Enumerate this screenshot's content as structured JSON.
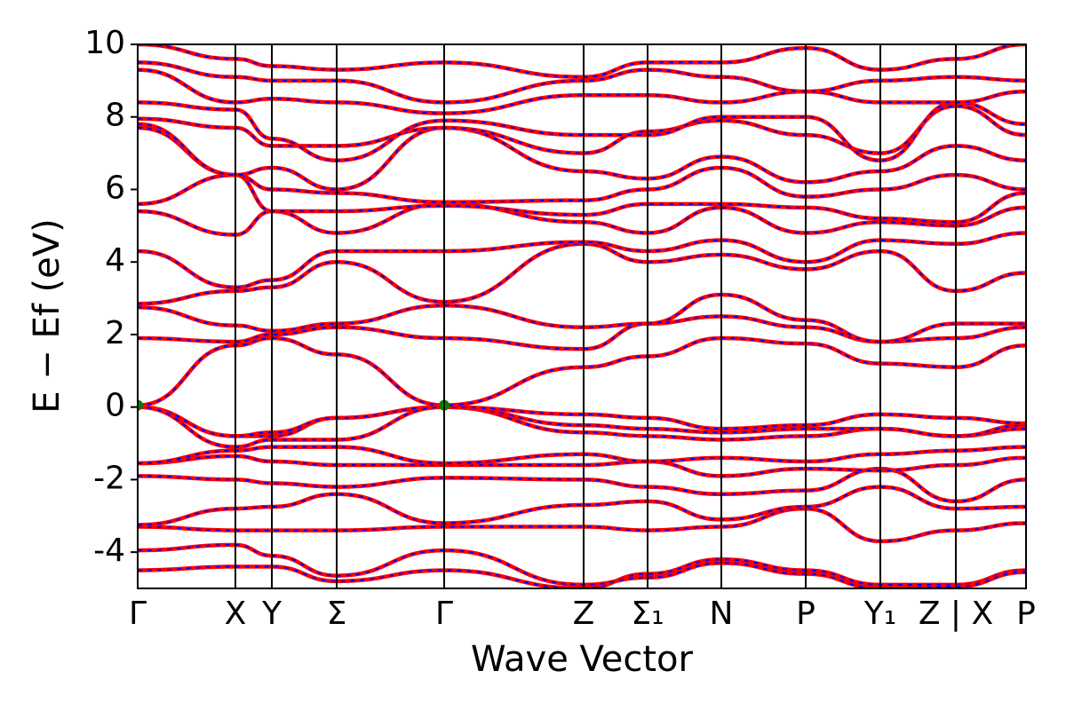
{
  "chart_data": {
    "type": "line",
    "xlabel": "Wave Vector",
    "ylabel": "E − Ef (eV)",
    "x": [
      0,
      110,
      151,
      224,
      345,
      502,
      574,
      657,
      752,
      836,
      921,
      1000
    ],
    "xlim": [
      0,
      1000
    ],
    "ylim": [
      -5,
      10
    ],
    "xticks": [
      {
        "value": 0,
        "label": "Γ"
      },
      {
        "value": 110,
        "label": "X"
      },
      {
        "value": 151,
        "label": "Y"
      },
      {
        "value": 224,
        "label": "Σ"
      },
      {
        "value": 345,
        "label": "Γ"
      },
      {
        "value": 502,
        "label": "Z"
      },
      {
        "value": 574,
        "label": "Σ₁"
      },
      {
        "value": 657,
        "label": "N"
      },
      {
        "value": 752,
        "label": "P"
      },
      {
        "value": 836,
        "label": "Y₁"
      },
      {
        "value": 921,
        "label": "Z | X"
      },
      {
        "value": 1000,
        "label": "P"
      }
    ],
    "yticks": [
      -4,
      -2,
      0,
      2,
      4,
      6,
      8,
      10
    ],
    "line_color": "#ff0000",
    "overlay_color": "#0000ff",
    "markers": {
      "x": [
        0,
        345
      ],
      "y": [
        0.05,
        0.05
      ],
      "color": "#008000"
    },
    "series": [
      {
        "values": [
          -4.5,
          -4.4,
          -4.4,
          -4.8,
          -4.5,
          -5.0,
          -4.6,
          -4.2,
          -4.5,
          -4.9,
          -4.9,
          -4.5
        ]
      },
      {
        "values": [
          -3.95,
          -3.8,
          -4.1,
          -4.65,
          -3.95,
          -4.9,
          -4.7,
          -4.3,
          -4.6,
          -5.0,
          -4.95,
          -4.55
        ]
      },
      {
        "values": [
          -3.3,
          -3.4,
          -3.4,
          -3.4,
          -3.3,
          -3.3,
          -3.4,
          -3.3,
          -2.8,
          -3.7,
          -3.4,
          -3.2
        ]
      },
      {
        "values": [
          -3.25,
          -2.8,
          -2.75,
          -2.4,
          -3.2,
          -2.7,
          -2.6,
          -3.1,
          -2.75,
          -2.2,
          -2.8,
          -2.75
        ]
      },
      {
        "values": [
          -1.9,
          -2.0,
          -2.1,
          -2.2,
          -1.95,
          -2.0,
          -2.2,
          -2.4,
          -2.3,
          -1.7,
          -2.6,
          -2.0
        ]
      },
      {
        "values": [
          -1.55,
          -1.35,
          -1.5,
          -1.6,
          -1.6,
          -1.6,
          -1.5,
          -1.9,
          -1.7,
          -1.75,
          -1.6,
          -1.4
        ]
      },
      {
        "values": [
          -1.55,
          -1.2,
          -1.1,
          -1.1,
          -1.55,
          -1.3,
          -1.5,
          -1.4,
          -1.5,
          -1.3,
          -1.2,
          -1.1
        ]
      },
      {
        "values": [
          0,
          -0.8,
          -0.8,
          -0.3,
          0,
          -0.7,
          -0.8,
          -0.9,
          -0.8,
          -0.6,
          -0.8,
          -0.6
        ]
      },
      {
        "values": [
          0,
          -0.8,
          -0.7,
          -0.3,
          0,
          -0.5,
          -0.6,
          -0.7,
          -0.6,
          -0.6,
          -0.8,
          -0.5
        ]
      },
      {
        "values": [
          0,
          -1.1,
          -0.9,
          -0.9,
          0,
          -0.2,
          -0.3,
          -0.6,
          -0.5,
          -0.2,
          -0.3,
          -0.45
        ]
      },
      {
        "values": [
          0.05,
          1.7,
          1.9,
          1.45,
          0.05,
          1.1,
          1.4,
          1.9,
          1.75,
          1.2,
          1.1,
          1.7
        ]
      },
      {
        "values": [
          1.9,
          1.8,
          2.0,
          2.2,
          1.9,
          1.6,
          2.3,
          2.5,
          2.2,
          1.8,
          1.9,
          2.2
        ]
      },
      {
        "values": [
          2.75,
          2.25,
          2.1,
          2.3,
          2.8,
          2.2,
          2.3,
          3.1,
          2.4,
          1.8,
          2.3,
          2.3
        ]
      },
      {
        "values": [
          2.85,
          3.2,
          3.3,
          4.0,
          2.9,
          4.5,
          4.0,
          4.2,
          3.8,
          4.3,
          3.2,
          3.7
        ]
      },
      {
        "values": [
          4.3,
          3.3,
          3.5,
          4.3,
          4.3,
          4.55,
          4.3,
          4.6,
          4.0,
          4.6,
          4.5,
          4.8
        ]
      },
      {
        "values": [
          5.4,
          4.75,
          5.4,
          4.8,
          5.6,
          5.1,
          4.8,
          5.5,
          4.8,
          5.1,
          5.0,
          5.5
        ]
      },
      {
        "values": [
          5.6,
          6.4,
          5.4,
          5.4,
          5.55,
          5.3,
          5.6,
          5.6,
          5.5,
          5.2,
          5.1,
          5.9
        ]
      },
      {
        "values": [
          7.7,
          6.4,
          6.0,
          5.9,
          5.65,
          5.7,
          6.0,
          6.6,
          5.8,
          6.0,
          6.4,
          6.0
        ]
      },
      {
        "values": [
          7.8,
          6.4,
          6.6,
          6.0,
          7.7,
          6.5,
          6.3,
          6.9,
          6.2,
          6.5,
          7.2,
          6.8
        ]
      },
      {
        "values": [
          7.95,
          7.7,
          7.2,
          7.2,
          7.7,
          7.0,
          7.6,
          7.9,
          7.5,
          7.0,
          8.3,
          7.5
        ]
      },
      {
        "values": [
          8.4,
          8.2,
          7.4,
          6.8,
          7.9,
          7.5,
          7.5,
          8.0,
          8.0,
          6.8,
          8.4,
          7.8
        ]
      },
      {
        "values": [
          9.3,
          8.4,
          8.5,
          8.4,
          8.1,
          8.6,
          8.6,
          8.4,
          8.7,
          8.4,
          8.4,
          8.7
        ]
      },
      {
        "values": [
          9.5,
          9.1,
          9.0,
          9.0,
          8.4,
          9.0,
          9.3,
          9.1,
          8.7,
          9.0,
          9.1,
          9.0
        ]
      },
      {
        "values": [
          10.0,
          9.6,
          9.4,
          9.3,
          9.5,
          9.1,
          9.5,
          9.5,
          9.9,
          9.3,
          9.6,
          10.0
        ]
      }
    ]
  }
}
